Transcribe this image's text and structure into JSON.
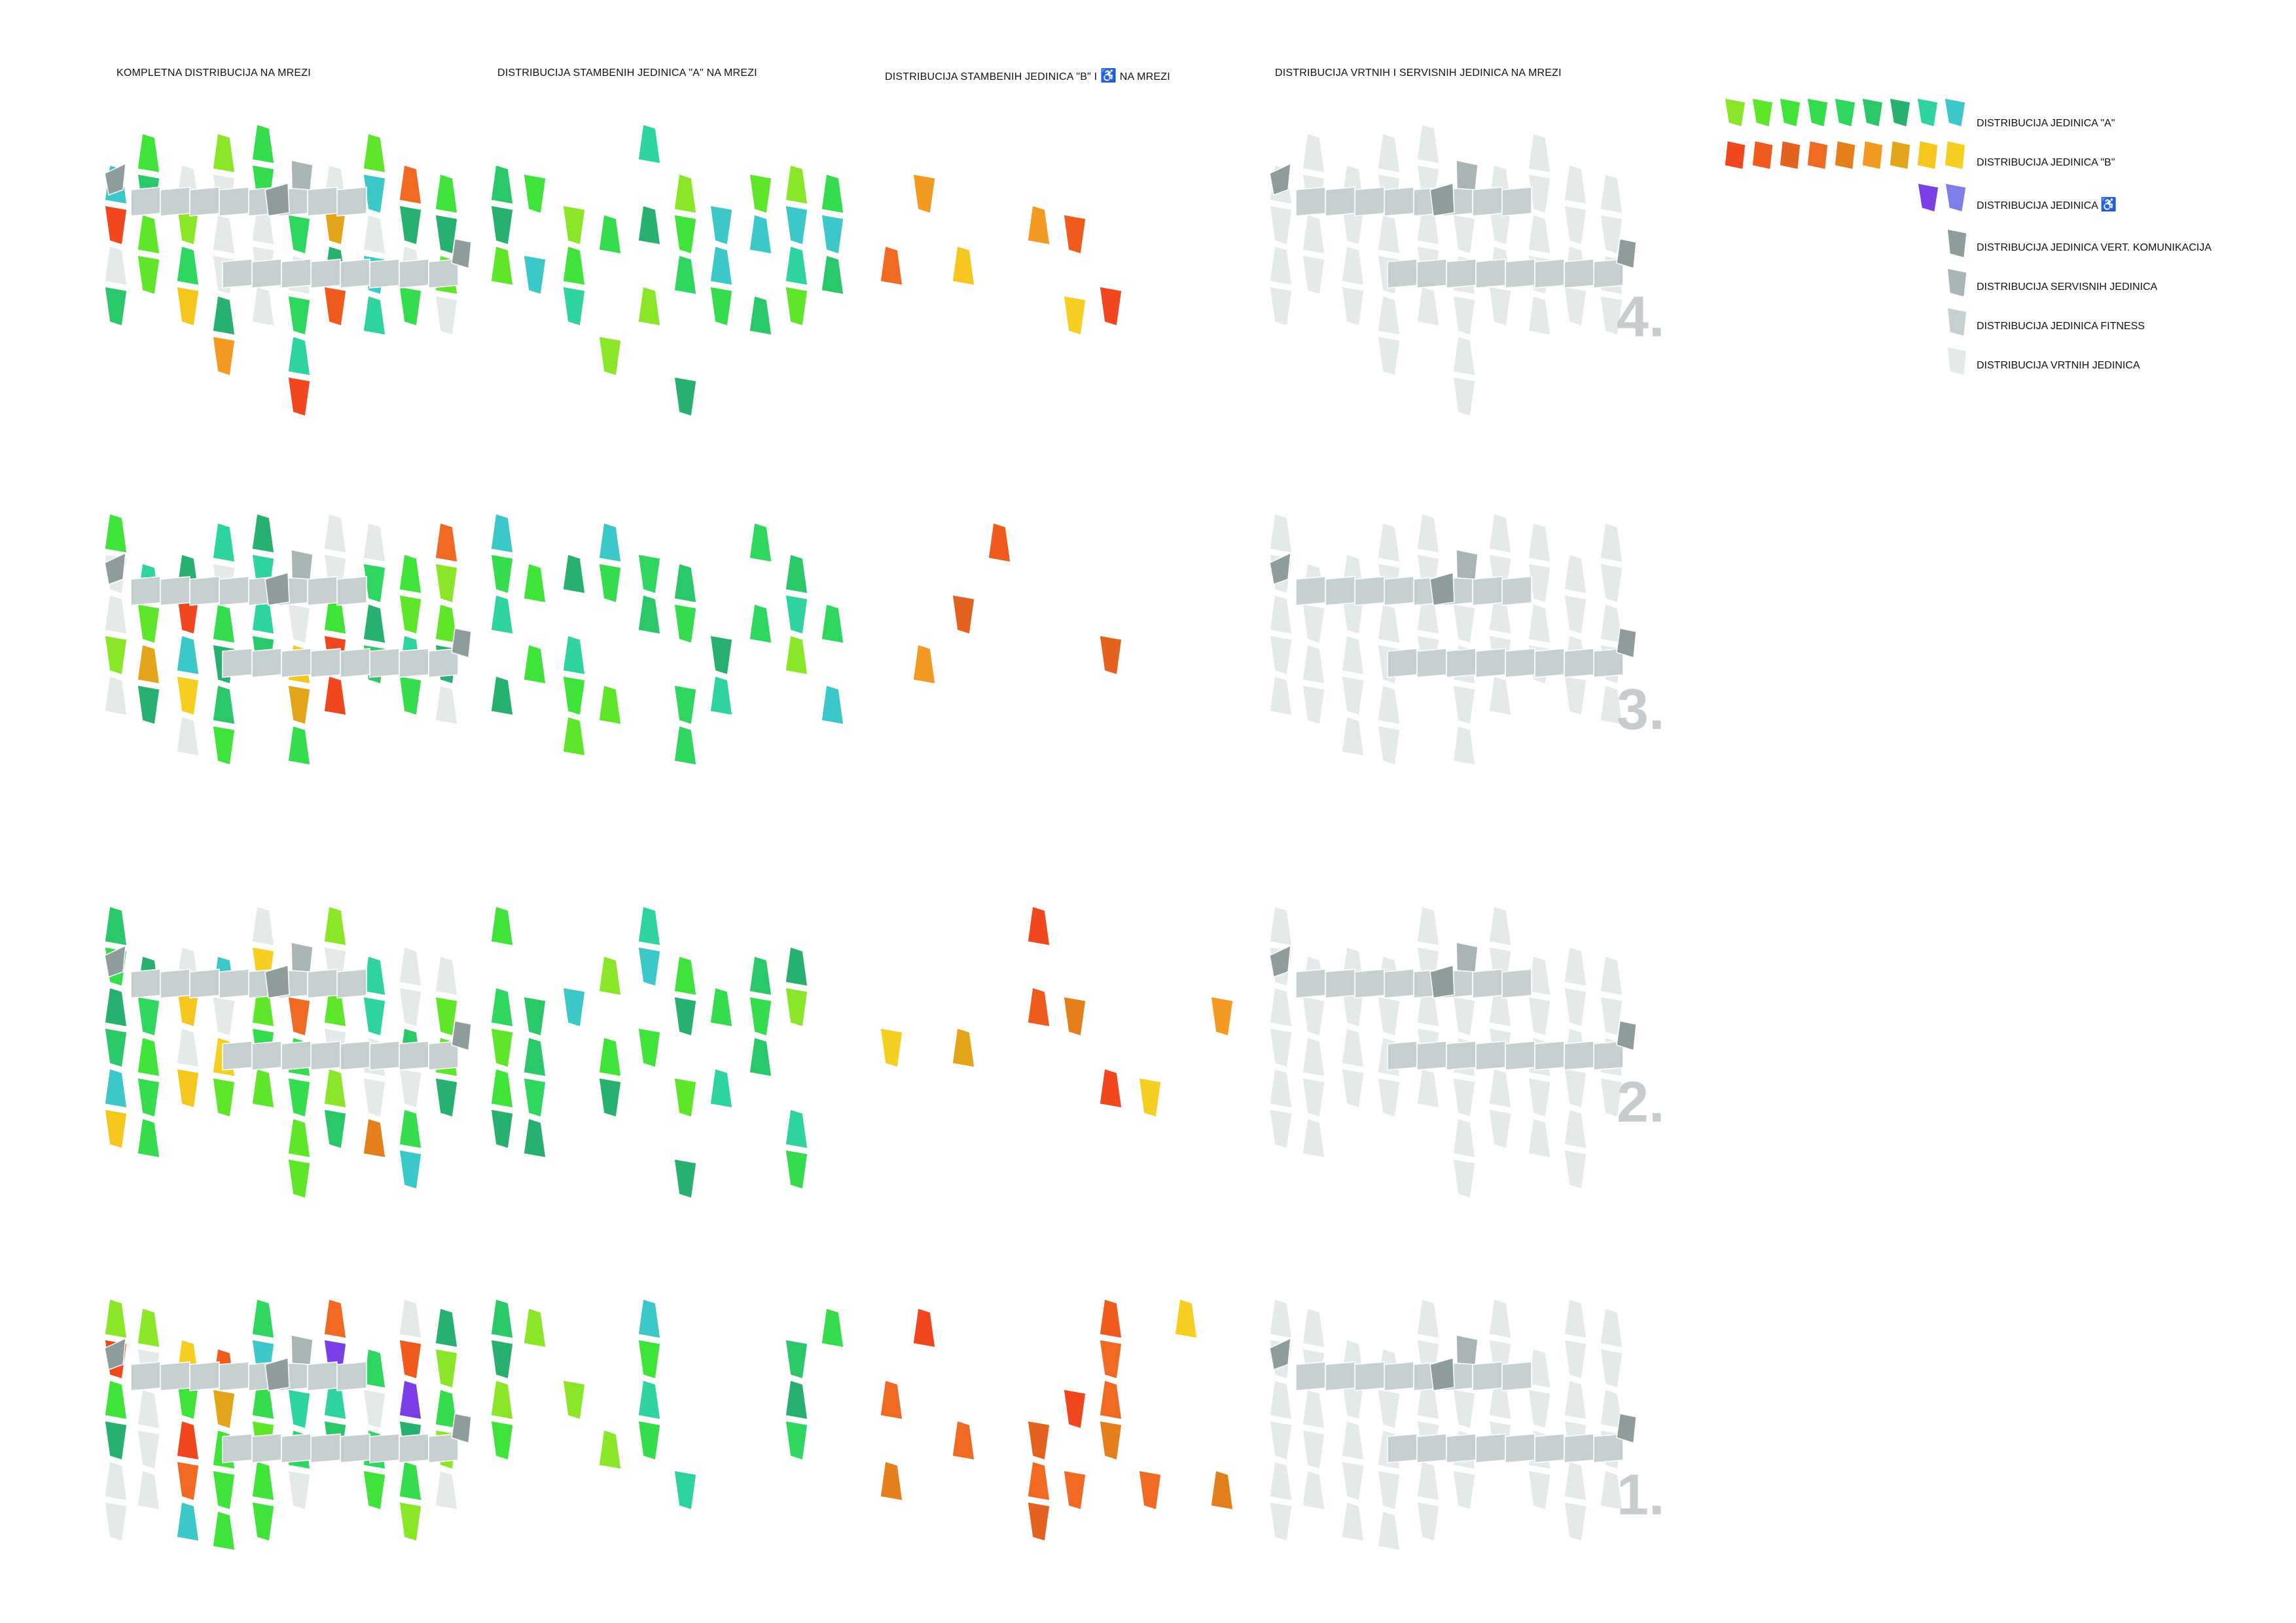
{
  "titles": {
    "complete": "KOMPLETNA DISTRIBUCIJA NA MREZI",
    "units_a": "DISTRIBUCIJA STAMBENIH JEDINICA \"A\" NA MREZI",
    "units_b_prefix": "DISTRIBUCIJA STAMBENIH JEDINICA  \"B\" I",
    "units_b_suffix": "NA MREZI",
    "garden_service": "DISTRIBUCIJA VRTNIH I SERVISNIH JEDINICA NA MREZI"
  },
  "wheelchair_glyph": "♿",
  "legend": {
    "a_label": "DISTRIBUCIJA JEDINICA \"A\"",
    "b_label": "DISTRIBUCIJA JEDINICA \"B\"",
    "wc_label": "DISTRIBUCIJA JEDINICA",
    "vert_label": "DISTRIBUCIJA JEDINICA VERT. KOMUNIKACIJA",
    "service_label": "DISTRIBUCIJA SERVISNIH JEDINICA",
    "fitness_label": "DISTRIBUCIJA JEDINICA FITNESS",
    "garden_label": "DISTRIBUCIJA VRTNIH JEDINICA"
  },
  "floors": [
    {
      "label": "4.",
      "seed": 4
    },
    {
      "label": "3.",
      "seed": 3
    },
    {
      "label": "2.",
      "seed": 2
    },
    {
      "label": "1.",
      "seed": 1
    }
  ],
  "colors": {
    "a_units": [
      "#8be62a",
      "#5fe62a",
      "#3fe33a",
      "#35dd4e",
      "#2fd65f",
      "#2bc86a",
      "#28b070",
      "#2fd3a0",
      "#3cc8c8"
    ],
    "b_units": [
      "#f1471e",
      "#ef5a1d",
      "#e4621f",
      "#f06a24",
      "#e4801c",
      "#f49a22",
      "#e3a51c",
      "#f5c71e",
      "#f5cf22"
    ],
    "wc_units": [
      "#7a3fe8",
      "#7d7ee8"
    ],
    "vert_comm": "#8e9c9c",
    "service": "#a9b5b5",
    "fitness": "#c7d0d0",
    "garden": "#e4e9e9",
    "floor_number": "#c7cdcf"
  }
}
